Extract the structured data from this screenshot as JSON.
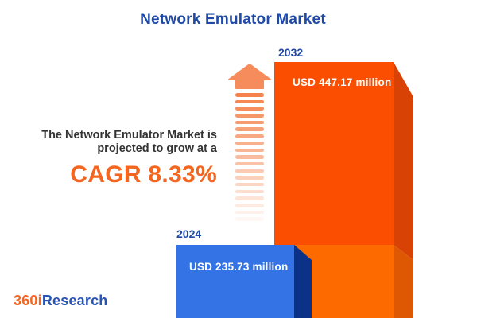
{
  "title": "Network Emulator Market",
  "annotation": {
    "line1": "The Network Emulator Market is",
    "line2": "projected to grow at a",
    "cagr": "CAGR 8.33%"
  },
  "bars": [
    {
      "year": "2024",
      "label": "USD 235.73 million",
      "value": 235.73,
      "face_color": "#3473e5",
      "side_color": "#0b3287"
    },
    {
      "year": "2032",
      "label": "USD 447.17 million",
      "value": 447.17,
      "face_color": "#fb4e00",
      "side_color": "#d84305"
    }
  ],
  "logo": {
    "part1": "360i",
    "part2": "Research"
  },
  "icons": {
    "growth_arrow": "up-arrow-fading-stripes"
  },
  "colors": {
    "title_blue": "#1f4aa8",
    "cagr_orange": "#f4661f",
    "bar_2032_face_top": "#fb4e00",
    "bar_2032_face_bottom": "#fc6a00",
    "bar_2032_side_top": "#d84305",
    "bar_2032_side_bottom": "#de5702",
    "bar_2024_face": "#3473e5",
    "bar_2024_side": "#0b3287",
    "arrow_head": "#f68b5b",
    "text_dark": "#333333"
  },
  "chart_data": {
    "type": "bar",
    "title": "Network Emulator Market",
    "categories": [
      "2024",
      "2032"
    ],
    "values": [
      235.73,
      447.17
    ],
    "unit": "USD million",
    "value_labels": [
      "USD 235.73 million",
      "USD 447.17 million"
    ],
    "annotation": "The Network Emulator Market is projected to grow at a CAGR 8.33%",
    "cagr_percent": 8.33,
    "series_colors": [
      "#3473e5",
      "#fb4e00"
    ],
    "legend": false,
    "axes": false
  }
}
